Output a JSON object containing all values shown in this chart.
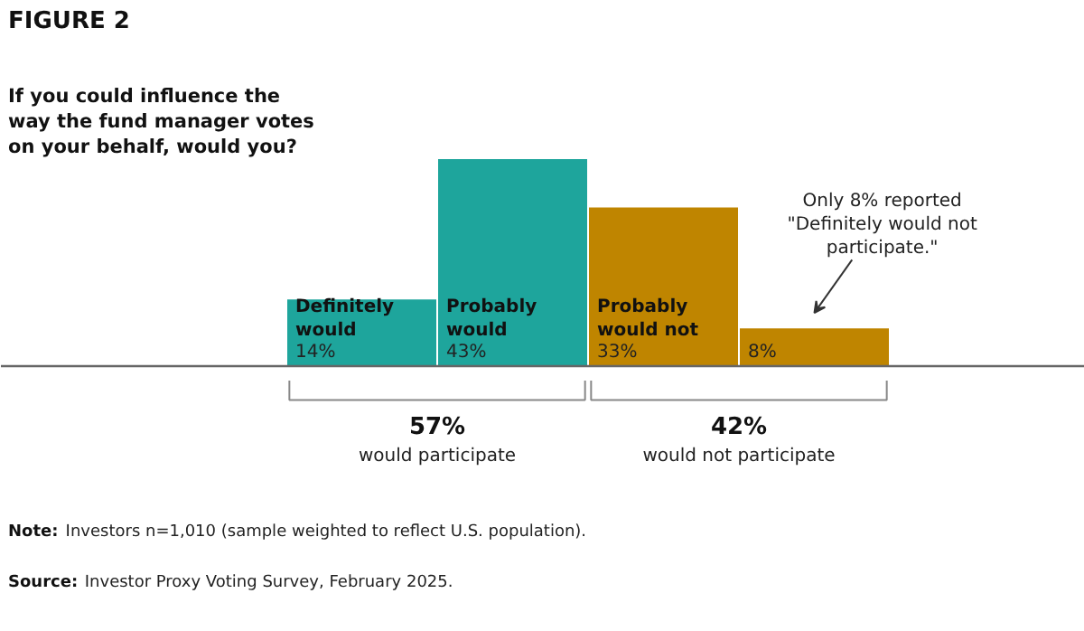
{
  "chart_data": {
    "type": "bar",
    "title": "FIGURE 2",
    "subtitle": "If you could influence the way the fund manager votes on your behalf, would you?",
    "categories": [
      "Definitely would",
      "Probably would",
      "Probably would not",
      null
    ],
    "values": [
      14,
      43,
      33,
      8
    ],
    "colors": [
      "#1ea59c",
      "#1ea59c",
      "#bf8500",
      "#bf8500"
    ],
    "value_labels": [
      "14%",
      "43%",
      "33%",
      "8%"
    ],
    "annotations": [
      "57%\nwould participate",
      "42%\nwould not participate",
      "Only 8% reported\n\"Definitely would not\nparticipate.\"",
      "Note: Investors n=1,010 (sample weighted to reflect U.S. population).",
      "Source: Investor Proxy Voting Survey, February 2025."
    ],
    "grid": false
  }
}
